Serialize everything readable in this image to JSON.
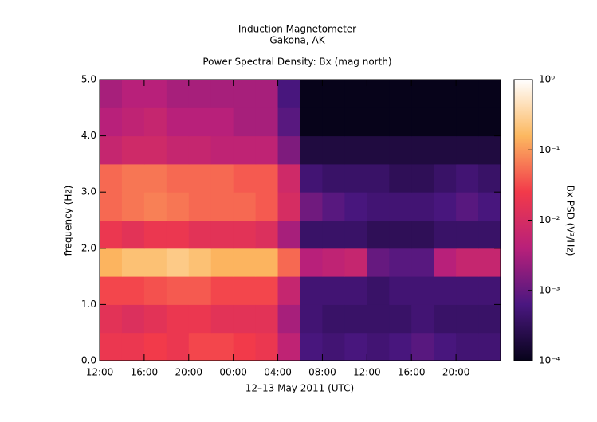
{
  "chart_data": {
    "type": "heatmap",
    "title": "Induction Magnetometer",
    "subtitle": "Gakona, AK",
    "plot_title": "Power Spectral Density: Bx (mag north)",
    "xlabel": "12–13 May 2011 (UTC)",
    "ylabel": "frequency (Hz)",
    "colorbar_label": "Bx PSD (V²/Hz)",
    "xlim": [
      0,
      36
    ],
    "xticks": [
      {
        "value": 0,
        "label": "12:00"
      },
      {
        "value": 4,
        "label": "16:00"
      },
      {
        "value": 8,
        "label": "20:00"
      },
      {
        "value": 12,
        "label": "00:00"
      },
      {
        "value": 16,
        "label": "04:00"
      },
      {
        "value": 20,
        "label": "08:00"
      },
      {
        "value": 24,
        "label": "12:00"
      },
      {
        "value": 28,
        "label": "16:00"
      },
      {
        "value": 32,
        "label": "20:00"
      }
    ],
    "ylim": [
      0,
      5
    ],
    "yticks": [
      {
        "value": 0,
        "label": "0.0"
      },
      {
        "value": 1,
        "label": "1.0"
      },
      {
        "value": 2,
        "label": "2.0"
      },
      {
        "value": 3,
        "label": "3.0"
      },
      {
        "value": 4,
        "label": "4.0"
      },
      {
        "value": 5,
        "label": "5.0"
      }
    ],
    "clim": [
      0.0001,
      1
    ],
    "clog": true,
    "cticks": [
      {
        "value": 0.0001,
        "label": "10⁻⁴"
      },
      {
        "value": 0.001,
        "label": "10⁻³"
      },
      {
        "value": 0.01,
        "label": "10⁻²"
      },
      {
        "value": 0.1,
        "label": "10⁻¹"
      },
      {
        "value": 1,
        "label": "10⁰"
      }
    ],
    "colormap": [
      "#07031a",
      "#4a1780",
      "#b8207a",
      "#f23a4a",
      "#fcb860",
      "#ffffff"
    ],
    "xbins": [
      0,
      2,
      4,
      6,
      8,
      10,
      12,
      14,
      16,
      18,
      20,
      22,
      24,
      26,
      28,
      30,
      32,
      34,
      36
    ],
    "ybins": [
      0,
      0.5,
      1,
      1.5,
      2,
      2.5,
      3,
      3.5,
      4,
      4.5,
      5
    ],
    "z": [
      [
        0.02,
        0.02,
        0.025,
        0.02,
        0.03,
        0.03,
        0.025,
        0.02,
        0.005,
        0.0006,
        0.0005,
        0.0006,
        0.0005,
        0.0006,
        0.0008,
        0.0006,
        0.0005,
        0.0005
      ],
      [
        0.015,
        0.012,
        0.015,
        0.02,
        0.02,
        0.015,
        0.015,
        0.015,
        0.003,
        0.0005,
        0.0004,
        0.0004,
        0.0004,
        0.0004,
        0.0005,
        0.0004,
        0.0004,
        0.0004
      ],
      [
        0.03,
        0.03,
        0.035,
        0.04,
        0.04,
        0.03,
        0.03,
        0.03,
        0.006,
        0.0005,
        0.0005,
        0.0005,
        0.0004,
        0.0005,
        0.0005,
        0.0005,
        0.0005,
        0.0005
      ],
      [
        0.15,
        0.2,
        0.2,
        0.25,
        0.2,
        0.15,
        0.15,
        0.15,
        0.05,
        0.004,
        0.005,
        0.006,
        0.001,
        0.0008,
        0.0008,
        0.004,
        0.006,
        0.006
      ],
      [
        0.02,
        0.015,
        0.02,
        0.02,
        0.015,
        0.015,
        0.015,
        0.012,
        0.003,
        0.0004,
        0.0004,
        0.0004,
        0.0003,
        0.0003,
        0.0003,
        0.0004,
        0.0004,
        0.0004
      ],
      [
        0.05,
        0.06,
        0.07,
        0.06,
        0.05,
        0.05,
        0.05,
        0.04,
        0.01,
        0.0012,
        0.0008,
        0.0006,
        0.0005,
        0.0005,
        0.0005,
        0.0006,
        0.0008,
        0.0006
      ],
      [
        0.05,
        0.06,
        0.06,
        0.05,
        0.05,
        0.05,
        0.04,
        0.04,
        0.008,
        0.0005,
        0.0004,
        0.0004,
        0.0004,
        0.0003,
        0.0003,
        0.0004,
        0.0005,
        0.0004
      ],
      [
        0.006,
        0.008,
        0.008,
        0.006,
        0.006,
        0.005,
        0.005,
        0.005,
        0.0015,
        0.0002,
        0.0002,
        0.0002,
        0.0002,
        0.0002,
        0.0002,
        0.0002,
        0.0002,
        0.0002
      ],
      [
        0.004,
        0.005,
        0.006,
        0.004,
        0.004,
        0.004,
        0.003,
        0.003,
        0.0008,
        0.0001,
        0.0001,
        0.0001,
        0.0001,
        0.0001,
        0.0001,
        0.0001,
        0.0001,
        0.0001
      ],
      [
        0.003,
        0.004,
        0.004,
        0.003,
        0.003,
        0.003,
        0.003,
        0.003,
        0.0006,
        0.0001,
        0.0001,
        0.0001,
        0.0001,
        0.0001,
        0.0001,
        0.0001,
        0.0001,
        0.0001
      ]
    ]
  }
}
